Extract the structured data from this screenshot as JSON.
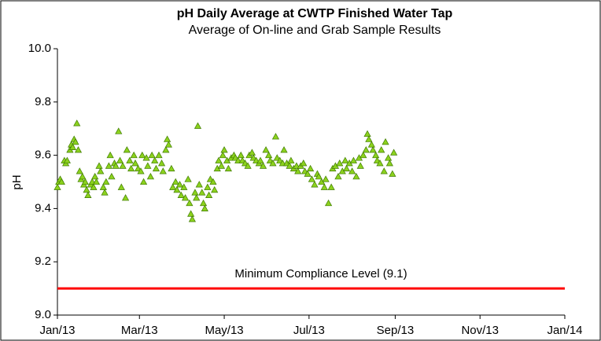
{
  "chart_data": {
    "type": "scatter",
    "title": "pH Daily Average at CWTP Finished Water Tap",
    "subtitle": "Average of On-line and Grab Sample Results",
    "y_label": "pH",
    "xlim": [
      0,
      365
    ],
    "xticks": [
      {
        "value": 0,
        "label": "Jan/13"
      },
      {
        "value": 59,
        "label": "Mar/13"
      },
      {
        "value": 120,
        "label": "May/13"
      },
      {
        "value": 181,
        "label": "Jul/13"
      },
      {
        "value": 243,
        "label": "Sep/13"
      },
      {
        "value": 304,
        "label": "Nov/13"
      },
      {
        "value": 365,
        "label": "Jan/14"
      }
    ],
    "ylim": [
      9.0,
      10.0
    ],
    "yticks": [
      {
        "value": 9.0,
        "label": "9.0"
      },
      {
        "value": 9.2,
        "label": "9.2"
      },
      {
        "value": 9.4,
        "label": "9.4"
      },
      {
        "value": 9.6,
        "label": "9.6"
      },
      {
        "value": 9.8,
        "label": "9.8"
      },
      {
        "value": 10.0,
        "label": "10.0"
      }
    ],
    "grid": false,
    "series": [
      {
        "color": "#8cd21e",
        "x": [
          0,
          1,
          2,
          3,
          5,
          6,
          7,
          9,
          10,
          11,
          12,
          13,
          14,
          15,
          16,
          17,
          18,
          19,
          20,
          21,
          22,
          24,
          25,
          26,
          27,
          28,
          30,
          31,
          33,
          34,
          35,
          37,
          38,
          39,
          41,
          42,
          44,
          45,
          46,
          47,
          49,
          50,
          52,
          53,
          55,
          56,
          58,
          60,
          61,
          62,
          64,
          65,
          67,
          68,
          70,
          71,
          73,
          75,
          76,
          78,
          79,
          80,
          82,
          83,
          85,
          86,
          88,
          89,
          91,
          92,
          94,
          95,
          96,
          97,
          99,
          100,
          101,
          102,
          104,
          105,
          106,
          108,
          109,
          110,
          112,
          113,
          115,
          116,
          118,
          119,
          120,
          122,
          123,
          125,
          127,
          128,
          130,
          132,
          133,
          135,
          137,
          138,
          140,
          141,
          143,
          145,
          146,
          148,
          150,
          152,
          153,
          155,
          157,
          158,
          160,
          162,
          163,
          165,
          167,
          168,
          170,
          172,
          173,
          175,
          177,
          178,
          180,
          182,
          183,
          185,
          187,
          188,
          190,
          192,
          193,
          195,
          197,
          198,
          200,
          202,
          203,
          205,
          207,
          208,
          210,
          212,
          213,
          215,
          217,
          218,
          220,
          222,
          223,
          224,
          226,
          227,
          229,
          230,
          232,
          233,
          235,
          236,
          238,
          239,
          241,
          242
        ],
        "values": [
          9.48,
          9.5,
          9.51,
          9.5,
          9.58,
          9.57,
          9.58,
          9.62,
          9.64,
          9.63,
          9.66,
          9.65,
          9.72,
          9.62,
          9.54,
          9.51,
          9.52,
          9.49,
          9.5,
          9.47,
          9.45,
          9.49,
          9.5,
          9.48,
          9.52,
          9.5,
          9.56,
          9.54,
          9.48,
          9.46,
          9.5,
          9.56,
          9.6,
          9.52,
          9.57,
          9.56,
          9.69,
          9.58,
          9.48,
          9.56,
          9.44,
          9.62,
          9.58,
          9.55,
          9.6,
          9.57,
          9.55,
          9.54,
          9.6,
          9.5,
          9.59,
          9.56,
          9.52,
          9.6,
          9.58,
          9.55,
          9.6,
          9.57,
          9.54,
          9.62,
          9.66,
          9.64,
          9.55,
          9.48,
          9.5,
          9.47,
          9.49,
          9.45,
          9.48,
          9.44,
          9.51,
          9.42,
          9.38,
          9.36,
          9.46,
          9.44,
          9.71,
          9.49,
          9.46,
          9.42,
          9.4,
          9.48,
          9.45,
          9.51,
          9.5,
          9.47,
          9.55,
          9.58,
          9.56,
          9.6,
          9.62,
          9.58,
          9.55,
          9.59,
          9.6,
          9.59,
          9.58,
          9.6,
          9.58,
          9.57,
          9.56,
          9.6,
          9.61,
          9.59,
          9.58,
          9.57,
          9.58,
          9.56,
          9.62,
          9.6,
          9.58,
          9.57,
          9.67,
          9.59,
          9.58,
          9.57,
          9.62,
          9.57,
          9.56,
          9.58,
          9.55,
          9.56,
          9.54,
          9.56,
          9.57,
          9.54,
          9.53,
          9.55,
          9.51,
          9.49,
          9.53,
          9.52,
          9.5,
          9.48,
          9.51,
          9.42,
          9.48,
          9.55,
          9.56,
          9.52,
          9.57,
          9.54,
          9.58,
          9.55,
          9.57,
          9.54,
          9.58,
          9.52,
          9.59,
          9.56,
          9.6,
          9.62,
          9.68,
          9.66,
          9.64,
          9.62,
          9.6,
          9.58,
          9.57,
          9.62,
          9.54,
          9.65,
          9.59,
          9.57,
          9.53,
          9.61
        ]
      }
    ],
    "reference_line": {
      "value": 9.1,
      "label": "Minimum Compliance Level (9.1)",
      "color": "#ff0000"
    }
  }
}
